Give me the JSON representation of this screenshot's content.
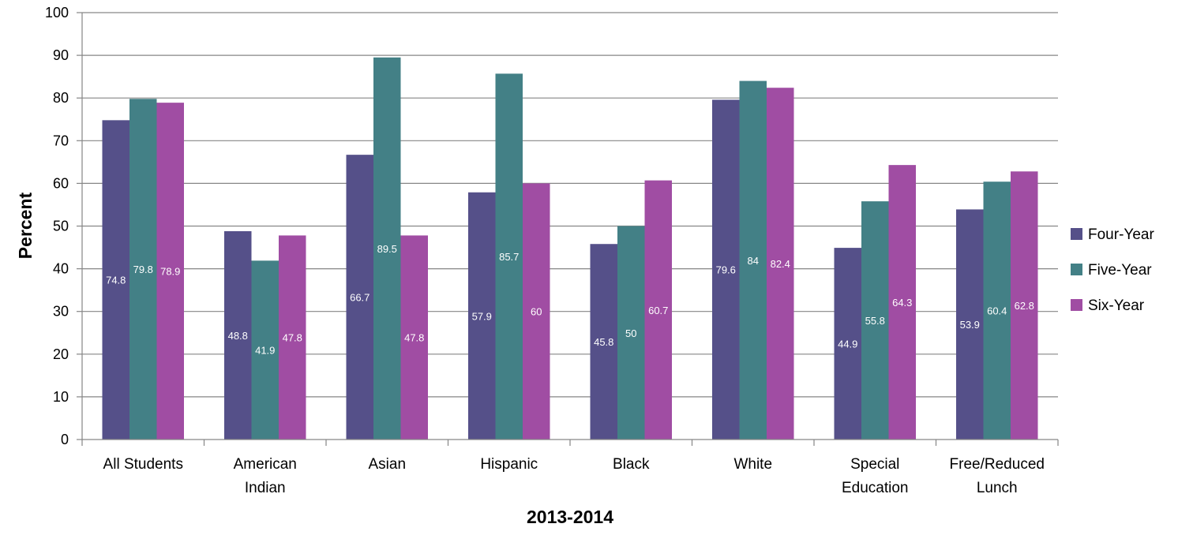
{
  "chart_data": {
    "type": "bar",
    "categories": [
      [
        "All Students"
      ],
      [
        "American",
        "Indian"
      ],
      [
        "Asian"
      ],
      [
        "Hispanic"
      ],
      [
        "Black"
      ],
      [
        "White"
      ],
      [
        "Special",
        "Education"
      ],
      [
        "Free/Reduced",
        "Lunch"
      ]
    ],
    "series": [
      {
        "name": "Four-Year",
        "color": "#555089",
        "values": [
          74.8,
          48.8,
          66.7,
          57.9,
          45.8,
          79.6,
          44.9,
          53.9
        ]
      },
      {
        "name": "Five-Year",
        "color": "#438086",
        "values": [
          79.8,
          41.9,
          89.5,
          85.7,
          50,
          84,
          55.8,
          60.4
        ]
      },
      {
        "name": "Six-Year",
        "color": "#A04DA3",
        "values": [
          78.9,
          47.8,
          47.8,
          60,
          60.7,
          82.4,
          64.3,
          62.8
        ]
      }
    ],
    "title": "",
    "xlabel": "2013-2014",
    "ylabel": "Percent",
    "ylim": [
      0,
      100
    ],
    "yticks": [
      0,
      10,
      20,
      30,
      40,
      50,
      60,
      70,
      80,
      90,
      100
    ],
    "grid": true,
    "legend": "right"
  }
}
